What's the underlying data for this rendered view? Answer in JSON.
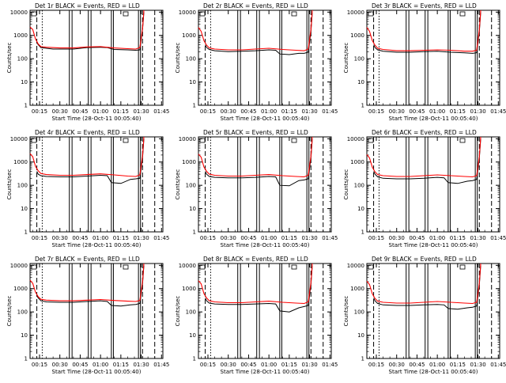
{
  "chart_data": {
    "type": "line",
    "layout": "3x3 grid",
    "x_axis": {
      "label": "Start Time (28-Oct-11 00:05:40)",
      "unit": "minutes since 00:00",
      "range": [
        8,
        106
      ],
      "ticks": [
        15,
        30,
        45,
        60,
        75,
        90,
        105
      ],
      "tick_labels": [
        "00:15",
        "00:30",
        "00:45",
        "01:00",
        "01:15",
        "01:30",
        "01:45"
      ]
    },
    "y_axis": {
      "label": "Counts/sec",
      "scale": "log",
      "range": [
        1,
        12000
      ],
      "ticks": [
        1,
        10,
        100,
        1000,
        10000
      ],
      "tick_labels": [
        "1",
        "10",
        "100",
        "1000",
        "10000"
      ]
    },
    "grid": false,
    "colors": {
      "events": "#000000",
      "lld": "#ff0000",
      "axes": "#000000"
    },
    "markers": {
      "dashed": [
        13,
        91,
        100
      ],
      "dotted": [
        17
      ],
      "solid_pairs": [
        [
          37,
          39
        ],
        [
          51,
          53
        ],
        [
          68,
          69.5
        ],
        [
          88,
          89.5
        ]
      ]
    },
    "panels": [
      {
        "title": "Det 1r BLACK = Events, RED = LLD",
        "events": [
          [
            13,
            500
          ],
          [
            14,
            400
          ],
          [
            16,
            300
          ],
          [
            20,
            280
          ],
          [
            25,
            260
          ],
          [
            30,
            260
          ],
          [
            40,
            260
          ],
          [
            50,
            300
          ],
          [
            60,
            310
          ],
          [
            65,
            300
          ],
          [
            70,
            250
          ],
          [
            80,
            240
          ],
          [
            86,
            230
          ],
          [
            89,
            240
          ],
          [
            91,
            1800
          ],
          [
            92,
            10000
          ]
        ],
        "lld": [
          [
            8,
            2300
          ],
          [
            10,
            1800
          ],
          [
            12,
            700
          ],
          [
            14,
            430
          ],
          [
            16,
            330
          ],
          [
            20,
            310
          ],
          [
            30,
            290
          ],
          [
            40,
            290
          ],
          [
            50,
            320
          ],
          [
            60,
            330
          ],
          [
            70,
            290
          ],
          [
            80,
            270
          ],
          [
            86,
            260
          ],
          [
            89,
            300
          ],
          [
            91,
            2000
          ],
          [
            92,
            12000
          ]
        ]
      },
      {
        "title": "Det 2r BLACK = Events, RED = LLD",
        "events": [
          [
            13,
            400
          ],
          [
            14,
            300
          ],
          [
            16,
            250
          ],
          [
            20,
            220
          ],
          [
            30,
            200
          ],
          [
            40,
            210
          ],
          [
            50,
            220
          ],
          [
            60,
            240
          ],
          [
            65,
            230
          ],
          [
            68,
            160
          ],
          [
            75,
            150
          ],
          [
            82,
            170
          ],
          [
            86,
            170
          ],
          [
            89,
            190
          ],
          [
            91,
            1500
          ],
          [
            92,
            10000
          ]
        ],
        "lld": [
          [
            8,
            2200
          ],
          [
            10,
            1500
          ],
          [
            12,
            600
          ],
          [
            14,
            380
          ],
          [
            16,
            290
          ],
          [
            20,
            260
          ],
          [
            30,
            240
          ],
          [
            40,
            240
          ],
          [
            50,
            260
          ],
          [
            60,
            280
          ],
          [
            70,
            250
          ],
          [
            80,
            230
          ],
          [
            86,
            220
          ],
          [
            89,
            260
          ],
          [
            91,
            1800
          ],
          [
            92,
            12000
          ]
        ]
      },
      {
        "title": "Det 3r BLACK = Events, RED = LLD",
        "events": [
          [
            13,
            400
          ],
          [
            14,
            300
          ],
          [
            16,
            240
          ],
          [
            20,
            210
          ],
          [
            30,
            190
          ],
          [
            40,
            190
          ],
          [
            50,
            200
          ],
          [
            60,
            210
          ],
          [
            70,
            190
          ],
          [
            80,
            180
          ],
          [
            86,
            170
          ],
          [
            89,
            180
          ],
          [
            91,
            1500
          ],
          [
            92,
            10000
          ]
        ],
        "lld": [
          [
            8,
            2200
          ],
          [
            10,
            1500
          ],
          [
            12,
            600
          ],
          [
            14,
            380
          ],
          [
            16,
            280
          ],
          [
            20,
            250
          ],
          [
            30,
            220
          ],
          [
            40,
            220
          ],
          [
            50,
            230
          ],
          [
            60,
            240
          ],
          [
            70,
            230
          ],
          [
            80,
            210
          ],
          [
            86,
            210
          ],
          [
            89,
            230
          ],
          [
            91,
            1800
          ],
          [
            92,
            12000
          ]
        ]
      },
      {
        "title": "Det 4r BLACK = Events, RED = LLD",
        "events": [
          [
            13,
            400
          ],
          [
            14,
            300
          ],
          [
            16,
            260
          ],
          [
            20,
            240
          ],
          [
            30,
            230
          ],
          [
            40,
            230
          ],
          [
            50,
            250
          ],
          [
            60,
            270
          ],
          [
            65,
            260
          ],
          [
            68,
            130
          ],
          [
            75,
            120
          ],
          [
            82,
            180
          ],
          [
            86,
            190
          ],
          [
            89,
            200
          ],
          [
            91,
            1500
          ],
          [
            92,
            10000
          ]
        ],
        "lld": [
          [
            8,
            2300
          ],
          [
            10,
            1700
          ],
          [
            12,
            650
          ],
          [
            14,
            420
          ],
          [
            16,
            320
          ],
          [
            20,
            290
          ],
          [
            30,
            270
          ],
          [
            40,
            270
          ],
          [
            50,
            290
          ],
          [
            60,
            310
          ],
          [
            70,
            280
          ],
          [
            80,
            250
          ],
          [
            86,
            240
          ],
          [
            89,
            280
          ],
          [
            91,
            1900
          ],
          [
            92,
            12000
          ]
        ]
      },
      {
        "title": "Det 5r BLACK = Events, RED = LLD",
        "events": [
          [
            13,
            400
          ],
          [
            14,
            300
          ],
          [
            16,
            240
          ],
          [
            20,
            220
          ],
          [
            30,
            210
          ],
          [
            40,
            210
          ],
          [
            50,
            220
          ],
          [
            60,
            240
          ],
          [
            65,
            230
          ],
          [
            68,
            100
          ],
          [
            75,
            95
          ],
          [
            82,
            160
          ],
          [
            86,
            170
          ],
          [
            89,
            190
          ],
          [
            91,
            1500
          ],
          [
            92,
            10000
          ]
        ],
        "lld": [
          [
            8,
            2200
          ],
          [
            10,
            1600
          ],
          [
            12,
            620
          ],
          [
            14,
            400
          ],
          [
            16,
            300
          ],
          [
            20,
            270
          ],
          [
            30,
            250
          ],
          [
            40,
            250
          ],
          [
            50,
            270
          ],
          [
            60,
            290
          ],
          [
            70,
            260
          ],
          [
            80,
            240
          ],
          [
            86,
            230
          ],
          [
            89,
            270
          ],
          [
            91,
            1800
          ],
          [
            92,
            12000
          ]
        ]
      },
      {
        "title": "Det 6r BLACK = Events, RED = LLD",
        "events": [
          [
            13,
            400
          ],
          [
            14,
            300
          ],
          [
            16,
            230
          ],
          [
            20,
            200
          ],
          [
            30,
            190
          ],
          [
            40,
            190
          ],
          [
            50,
            200
          ],
          [
            60,
            220
          ],
          [
            65,
            210
          ],
          [
            68,
            130
          ],
          [
            75,
            120
          ],
          [
            82,
            150
          ],
          [
            86,
            160
          ],
          [
            89,
            180
          ],
          [
            91,
            1500
          ],
          [
            92,
            10000
          ]
        ],
        "lld": [
          [
            8,
            2100
          ],
          [
            10,
            1500
          ],
          [
            12,
            600
          ],
          [
            14,
            380
          ],
          [
            16,
            290
          ],
          [
            20,
            260
          ],
          [
            30,
            240
          ],
          [
            40,
            240
          ],
          [
            50,
            260
          ],
          [
            60,
            280
          ],
          [
            70,
            260
          ],
          [
            80,
            240
          ],
          [
            86,
            230
          ],
          [
            89,
            260
          ],
          [
            91,
            1800
          ],
          [
            92,
            12000
          ]
        ]
      },
      {
        "title": "Det 7r BLACK = Events, RED = LLD",
        "events": [
          [
            13,
            500
          ],
          [
            14,
            400
          ],
          [
            16,
            300
          ],
          [
            20,
            270
          ],
          [
            30,
            260
          ],
          [
            40,
            260
          ],
          [
            50,
            280
          ],
          [
            60,
            300
          ],
          [
            65,
            280
          ],
          [
            68,
            190
          ],
          [
            75,
            180
          ],
          [
            82,
            200
          ],
          [
            86,
            210
          ],
          [
            89,
            230
          ],
          [
            91,
            1600
          ],
          [
            92,
            10000
          ]
        ],
        "lld": [
          [
            8,
            2300
          ],
          [
            10,
            1700
          ],
          [
            12,
            700
          ],
          [
            14,
            450
          ],
          [
            16,
            350
          ],
          [
            20,
            320
          ],
          [
            30,
            300
          ],
          [
            40,
            300
          ],
          [
            50,
            320
          ],
          [
            60,
            340
          ],
          [
            70,
            310
          ],
          [
            80,
            290
          ],
          [
            86,
            280
          ],
          [
            89,
            310
          ],
          [
            91,
            2000
          ],
          [
            92,
            12000
          ]
        ]
      },
      {
        "title": "Det 8r BLACK = Events, RED = LLD",
        "events": [
          [
            13,
            400
          ],
          [
            14,
            300
          ],
          [
            16,
            240
          ],
          [
            20,
            220
          ],
          [
            30,
            210
          ],
          [
            40,
            210
          ],
          [
            50,
            220
          ],
          [
            60,
            230
          ],
          [
            65,
            220
          ],
          [
            68,
            110
          ],
          [
            75,
            100
          ],
          [
            82,
            150
          ],
          [
            86,
            170
          ],
          [
            89,
            190
          ],
          [
            91,
            1500
          ],
          [
            92,
            10000
          ]
        ],
        "lld": [
          [
            8,
            2200
          ],
          [
            10,
            1600
          ],
          [
            12,
            620
          ],
          [
            14,
            400
          ],
          [
            16,
            300
          ],
          [
            20,
            270
          ],
          [
            30,
            250
          ],
          [
            40,
            250
          ],
          [
            50,
            270
          ],
          [
            60,
            290
          ],
          [
            70,
            260
          ],
          [
            80,
            240
          ],
          [
            86,
            230
          ],
          [
            89,
            270
          ],
          [
            91,
            1800
          ],
          [
            92,
            12000
          ]
        ]
      },
      {
        "title": "Det 9r BLACK = Events, RED = LLD",
        "events": [
          [
            13,
            400
          ],
          [
            14,
            300
          ],
          [
            16,
            230
          ],
          [
            20,
            200
          ],
          [
            30,
            190
          ],
          [
            40,
            190
          ],
          [
            50,
            200
          ],
          [
            60,
            210
          ],
          [
            65,
            200
          ],
          [
            68,
            140
          ],
          [
            75,
            130
          ],
          [
            82,
            150
          ],
          [
            86,
            160
          ],
          [
            89,
            180
          ],
          [
            91,
            1500
          ],
          [
            92,
            10000
          ]
        ],
        "lld": [
          [
            8,
            2100
          ],
          [
            10,
            1500
          ],
          [
            12,
            600
          ],
          [
            14,
            380
          ],
          [
            16,
            290
          ],
          [
            20,
            260
          ],
          [
            30,
            240
          ],
          [
            40,
            240
          ],
          [
            50,
            260
          ],
          [
            60,
            280
          ],
          [
            70,
            260
          ],
          [
            80,
            240
          ],
          [
            86,
            230
          ],
          [
            89,
            260
          ],
          [
            91,
            1800
          ],
          [
            92,
            12000
          ]
        ]
      }
    ]
  }
}
